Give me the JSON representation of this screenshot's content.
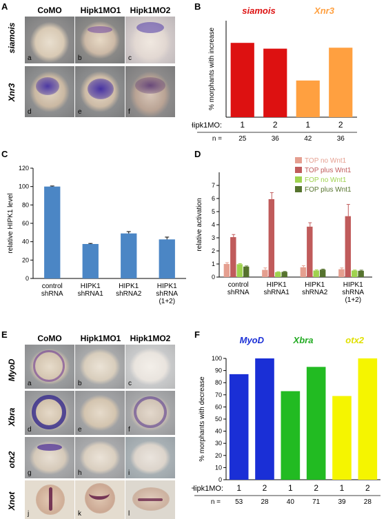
{
  "panels": {
    "A": {
      "letter": "A",
      "columns": [
        "CoMO",
        "Hipk1MO1",
        "Hipk1MO2"
      ],
      "rows": [
        "siamois",
        "Xnr3"
      ],
      "sublabels": [
        "a",
        "b",
        "c",
        "d",
        "e",
        "f"
      ]
    },
    "B": {
      "letter": "B"
    },
    "C": {
      "letter": "C"
    },
    "D": {
      "letter": "D"
    },
    "E": {
      "letter": "E",
      "columns": [
        "CoMO",
        "Hipk1MO1",
        "Hipk1MO2"
      ],
      "rows": [
        "MyoD",
        "Xbra",
        "otx2",
        "Xnot"
      ],
      "sublabels": [
        "a",
        "b",
        "c",
        "d",
        "e",
        "f",
        "g",
        "h",
        "i",
        "j",
        "k",
        "l"
      ]
    },
    "F": {
      "letter": "F"
    }
  },
  "chart_data": [
    {
      "id": "B",
      "type": "bar",
      "ylabel": "% morphants with increase",
      "ylim": [
        0,
        100
      ],
      "groups": [
        {
          "name": "siamois",
          "color": "#dd1111"
        },
        {
          "name": "Xnr3",
          "color": "#ffa040"
        }
      ],
      "row_label_x": "Hipk1MO:",
      "categories": [
        "1",
        "2",
        "1",
        "2"
      ],
      "values": [
        77,
        71,
        38,
        72
      ],
      "bar_colors": [
        "#dd1111",
        "#dd1111",
        "#ffa040",
        "#ffa040"
      ],
      "n_label": "n =",
      "n": [
        "25",
        "36",
        "42",
        "36"
      ]
    },
    {
      "id": "C",
      "type": "bar",
      "ylabel": "relative HIPK1 level",
      "ylim": [
        0,
        120
      ],
      "yticks": [
        "0",
        "20",
        "40",
        "60",
        "80",
        "100",
        "120"
      ],
      "categories": [
        [
          "control",
          "shRNA"
        ],
        [
          "HIPK1",
          "shRNA1"
        ],
        [
          "HIPK1",
          "shRNA2"
        ],
        [
          "HIPK1",
          "shRNA",
          "(1+2)"
        ]
      ],
      "values": [
        100,
        37.5,
        49,
        42.5
      ],
      "errors": [
        0.6,
        0.6,
        2,
        2.5
      ],
      "color": "#4b86c5"
    },
    {
      "id": "D",
      "type": "bar",
      "ylabel": "relative activation",
      "ylim": [
        0,
        8
      ],
      "yticks": [
        "0",
        "1",
        "2",
        "3",
        "4",
        "5",
        "6",
        "7"
      ],
      "legend_position": "top-right",
      "categories": [
        [
          "control",
          "shRNA"
        ],
        [
          "HIPK1",
          "shRNA1"
        ],
        [
          "HIPK1",
          "shRNA2"
        ],
        [
          "HIPK1",
          "shRNA",
          "(1+2)"
        ]
      ],
      "series": [
        {
          "name": "TOP no Wnt1",
          "color": "#e59f90",
          "values": [
            1.0,
            0.55,
            0.75,
            0.6
          ],
          "errors": [
            0.1,
            0.15,
            0.12,
            0.1
          ]
        },
        {
          "name": "TOP plus Wnt1",
          "color": "#c05b5b",
          "values": [
            3.05,
            5.95,
            3.85,
            4.65
          ],
          "errors": [
            0.2,
            0.5,
            0.3,
            0.9
          ]
        },
        {
          "name": "FOP no Wnt1",
          "color": "#9fd24f",
          "values": [
            0.98,
            0.38,
            0.5,
            0.5
          ],
          "errors": [
            0.05,
            0.03,
            0.05,
            0.04
          ]
        },
        {
          "name": "FOP plus Wnt1",
          "color": "#56732e",
          "values": [
            0.8,
            0.4,
            0.57,
            0.48
          ],
          "errors": [
            0.05,
            0.03,
            0.04,
            0.05
          ]
        }
      ]
    },
    {
      "id": "F",
      "type": "bar",
      "ylabel": "% morphants with decrease",
      "ylim": [
        0,
        100
      ],
      "yticks": [
        "0",
        "10",
        "20",
        "30",
        "40",
        "50",
        "60",
        "70",
        "80",
        "90",
        "100"
      ],
      "groups": [
        {
          "name": "MyoD",
          "color": "#1a2fd6"
        },
        {
          "name": "Xbra",
          "color": "#22aa22"
        },
        {
          "name": "otx2",
          "color": "#e0e000"
        }
      ],
      "row_label_x": "Hipk1MO:",
      "categories": [
        "1",
        "2",
        "1",
        "2",
        "1",
        "2"
      ],
      "values": [
        87,
        100,
        73,
        93,
        69,
        100
      ],
      "bar_colors": [
        "#1a2fd6",
        "#1a2fd6",
        "#22bb22",
        "#22bb22",
        "#f5f500",
        "#f5f500"
      ],
      "n_label": "n =",
      "n": [
        "53",
        "28",
        "40",
        "71",
        "39",
        "28"
      ]
    }
  ]
}
